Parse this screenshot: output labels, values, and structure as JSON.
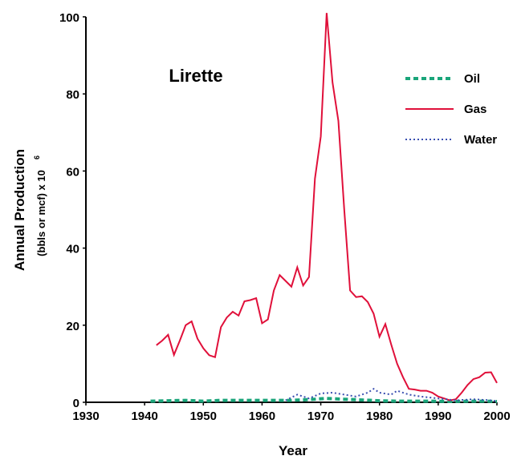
{
  "chart_data": {
    "type": "line",
    "annotation": "Lirette",
    "xlabel": "Year",
    "ylabel": "Annual Production",
    "ylabel_sub": "(bbls or mcf) x 10",
    "ylabel_exp": "6",
    "xlim": [
      1930,
      2000
    ],
    "xticks": [
      1930,
      1940,
      1950,
      1960,
      1970,
      1980,
      1990,
      2000
    ],
    "ylim": [
      0,
      100
    ],
    "yticks": [
      0,
      20,
      40,
      60,
      80,
      100
    ],
    "legend": "upper right",
    "series": [
      {
        "name": "Oil",
        "color": "#1aa57a",
        "style": "dashed",
        "x": [
          1941,
          1944,
          1947,
          1950,
          1953,
          1956,
          1959,
          1962,
          1965,
          1968,
          1971,
          1974,
          1977,
          1980,
          1983,
          1986,
          1989,
          1992,
          1995,
          1998,
          2000
        ],
        "values": [
          0.3,
          0.4,
          0.5,
          0.3,
          0.5,
          0.5,
          0.5,
          0.5,
          0.5,
          0.7,
          1,
          0.8,
          0.6,
          0.4,
          0.3,
          0.3,
          0.3,
          0.2,
          0.3,
          0.3,
          0.2
        ]
      },
      {
        "name": "Gas",
        "color": "#e0103a",
        "style": "solid",
        "x": [
          1942,
          1943,
          1944,
          1945,
          1946,
          1947,
          1948,
          1949,
          1950,
          1951,
          1952,
          1953,
          1954,
          1955,
          1956,
          1957,
          1958,
          1959,
          1960,
          1961,
          1962,
          1963,
          1964,
          1965,
          1966,
          1967,
          1968,
          1969,
          1970,
          1971,
          1972,
          1973,
          1974,
          1975,
          1976,
          1977,
          1978,
          1979,
          1980,
          1981,
          1982,
          1983,
          1984,
          1985,
          1986,
          1987,
          1988,
          1989,
          1990,
          1991,
          1992,
          1993,
          1994,
          1995,
          1996,
          1997,
          1998,
          1999,
          2000
        ],
        "values": [
          14.8,
          16,
          17.5,
          12.3,
          16,
          20,
          21,
          16.5,
          14,
          12.2,
          11.7,
          19.5,
          22,
          23.5,
          22.5,
          26.2,
          26.5,
          27,
          20.5,
          21.5,
          29,
          33,
          31.5,
          30,
          35,
          30.3,
          32.5,
          58,
          69,
          101,
          83,
          73,
          50,
          29,
          27.3,
          27.5,
          26,
          23,
          17,
          20.3,
          15,
          10,
          6.5,
          3.5,
          3.3,
          3,
          3,
          2.5,
          1.5,
          1,
          0.5,
          0.8,
          2.5,
          4.5,
          6,
          6.5,
          7.7,
          7.8,
          5
        ]
      },
      {
        "name": "Water",
        "color": "#3a4fb0",
        "style": "dotted",
        "x": [
          1964,
          1966,
          1968,
          1970,
          1972,
          1974,
          1976,
          1978,
          1979,
          1980,
          1982,
          1983,
          1985,
          1987,
          1990,
          1993,
          1996,
          1999,
          2000
        ],
        "values": [
          0.5,
          2,
          1,
          2.3,
          2.5,
          2,
          1.5,
          2.5,
          3.5,
          2.5,
          2,
          3,
          2,
          1.5,
          1,
          0.5,
          0.8,
          0.5,
          0.3
        ]
      }
    ]
  }
}
